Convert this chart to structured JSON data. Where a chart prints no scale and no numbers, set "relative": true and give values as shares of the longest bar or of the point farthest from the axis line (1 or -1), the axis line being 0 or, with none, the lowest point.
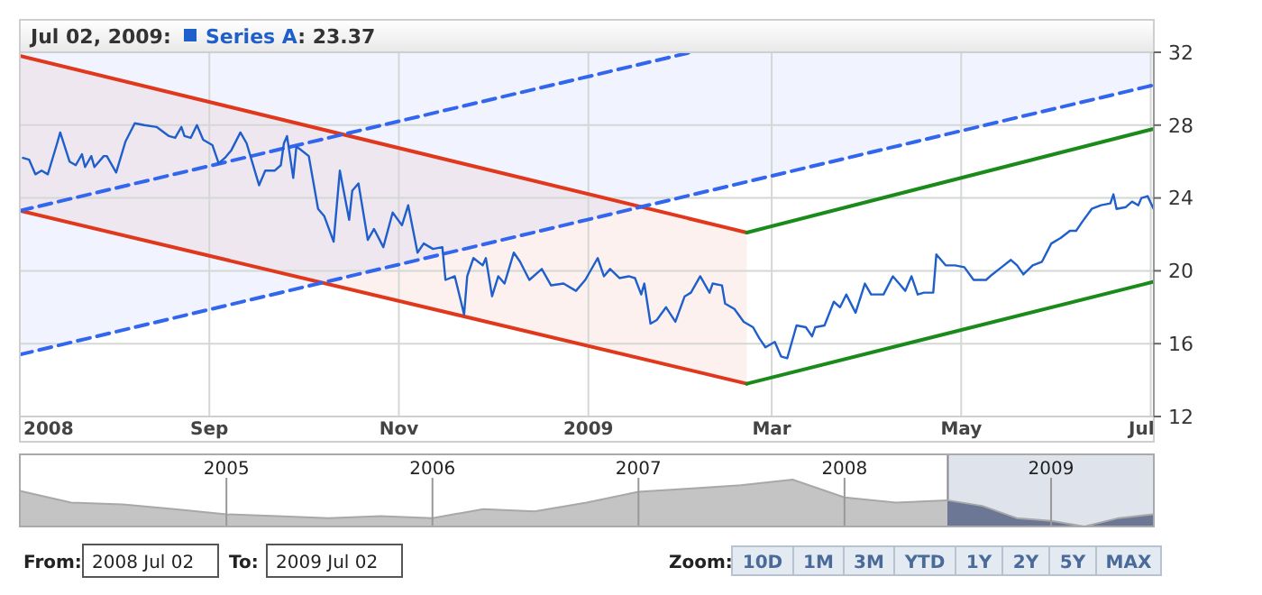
{
  "chart_data": [
    {
      "type": "line",
      "legend_title": "Jul 02, 2009:",
      "legend": "top left",
      "grid": true,
      "annotations": [
        ": 23.37"
      ],
      "xlim": [
        "2008-07-02",
        "2009-07-02"
      ],
      "ylim": [
        12,
        32
      ],
      "yticks": [
        12,
        16,
        20,
        24,
        28,
        32
      ],
      "xticks": [
        {
          "value": "2008-07-02",
          "label": "2008"
        },
        {
          "value": "2008-09-01",
          "label": "Sep"
        },
        {
          "value": "2008-11-01",
          "label": "Nov"
        },
        {
          "value": "2009-01-01",
          "label": "2009"
        },
        {
          "value": "2009-03-01",
          "label": "Mar"
        },
        {
          "value": "2009-05-01",
          "label": "May"
        },
        {
          "value": "2009-07-01",
          "label": "Jul"
        }
      ],
      "series": [
        {
          "type": "line",
          "name": "Series A",
          "color": "#1f5fcc",
          "x": [
            "2008-07-03",
            "2008-07-05",
            "2008-07-07",
            "2008-07-09",
            "2008-07-11",
            "2008-07-14",
            "2008-07-15",
            "2008-07-18",
            "2008-07-20",
            "2008-07-22",
            "2008-07-23",
            "2008-07-25",
            "2008-07-26",
            "2008-07-29",
            "2008-07-30",
            "2008-08-02",
            "2008-08-05",
            "2008-08-08",
            "2008-08-11",
            "2008-08-15",
            "2008-08-19",
            "2008-08-21",
            "2008-08-23",
            "2008-08-24",
            "2008-08-26",
            "2008-08-28",
            "2008-08-30",
            "2008-09-02",
            "2008-09-04",
            "2008-09-06",
            "2008-09-08",
            "2008-09-11",
            "2008-09-13",
            "2008-09-17",
            "2008-09-19",
            "2008-09-22",
            "2008-09-24",
            "2008-09-25",
            "2008-09-26",
            "2008-09-28",
            "2008-09-29",
            "2008-09-30",
            "2008-10-03",
            "2008-10-06",
            "2008-10-08",
            "2008-10-11",
            "2008-10-13",
            "2008-10-16",
            "2008-10-17",
            "2008-10-19",
            "2008-10-22",
            "2008-10-24",
            "2008-10-27",
            "2008-10-30",
            "2008-11-02",
            "2008-11-04",
            "2008-11-07",
            "2008-11-09",
            "2008-11-12",
            "2008-11-15",
            "2008-11-16",
            "2008-11-19",
            "2008-11-22",
            "2008-11-23",
            "2008-11-25",
            "2008-11-28",
            "2008-11-29",
            "2008-12-01",
            "2008-12-03",
            "2008-12-05",
            "2008-12-08",
            "2008-12-10",
            "2008-12-13",
            "2008-12-17",
            "2008-12-20",
            "2008-12-24",
            "2008-12-28",
            "2008-12-31",
            "2009-01-04",
            "2009-01-06",
            "2009-01-08",
            "2009-01-11",
            "2009-01-14",
            "2009-01-16",
            "2009-01-18",
            "2009-01-19",
            "2009-01-21",
            "2009-01-23",
            "2009-01-26",
            "2009-01-29",
            "2009-02-01",
            "2009-02-03",
            "2009-02-06",
            "2009-02-09",
            "2009-02-10",
            "2009-02-13",
            "2009-02-14",
            "2009-02-17",
            "2009-02-20",
            "2009-02-23",
            "2009-02-25",
            "2009-02-27",
            "2009-03-02",
            "2009-03-04",
            "2009-03-06",
            "2009-03-09",
            "2009-03-12",
            "2009-03-14",
            "2009-03-15",
            "2009-03-18",
            "2009-03-21",
            "2009-03-23",
            "2009-03-25",
            "2009-03-28",
            "2009-03-31",
            "2009-04-02",
            "2009-04-06",
            "2009-04-09",
            "2009-04-11",
            "2009-04-13",
            "2009-04-15",
            "2009-04-17",
            "2009-04-19",
            "2009-04-22",
            "2009-04-23",
            "2009-04-26",
            "2009-04-29",
            "2009-05-02",
            "2009-05-05",
            "2009-05-09",
            "2009-05-11",
            "2009-05-14",
            "2009-05-17",
            "2009-05-19",
            "2009-05-21",
            "2009-05-24",
            "2009-05-27",
            "2009-05-30",
            "2009-06-02",
            "2009-06-05",
            "2009-06-07",
            "2009-06-09",
            "2009-06-12",
            "2009-06-15",
            "2009-06-18",
            "2009-06-19",
            "2009-06-20",
            "2009-06-23",
            "2009-06-25",
            "2009-06-27",
            "2009-06-28",
            "2009-06-30",
            "2009-07-02"
          ],
          "values": [
            26.2,
            26.1,
            25.3,
            25.5,
            25.3,
            27.0,
            27.6,
            26.0,
            25.8,
            26.4,
            25.7,
            26.3,
            25.7,
            26.3,
            26.3,
            25.4,
            27.1,
            28.1,
            28.0,
            27.9,
            27.4,
            27.3,
            27.9,
            27.4,
            27.3,
            28.0,
            27.2,
            26.9,
            25.9,
            26.2,
            26.6,
            27.6,
            27.0,
            24.7,
            25.5,
            25.5,
            25.8,
            27.0,
            27.4,
            25.1,
            26.8,
            26.7,
            26.3,
            23.4,
            23.0,
            21.6,
            25.5,
            22.8,
            24.4,
            24.8,
            21.7,
            22.3,
            21.3,
            23.2,
            22.5,
            23.6,
            21.0,
            21.5,
            21.2,
            21.3,
            19.5,
            19.7,
            17.6,
            19.7,
            20.7,
            20.3,
            20.7,
            18.6,
            19.7,
            19.3,
            21.0,
            20.5,
            19.5,
            20.1,
            19.2,
            19.3,
            18.9,
            19.5,
            20.7,
            19.7,
            20.1,
            19.6,
            19.7,
            19.6,
            18.7,
            19.3,
            17.1,
            17.3,
            18.0,
            17.2,
            18.6,
            18.8,
            19.7,
            18.8,
            19.3,
            19.2,
            18.2,
            17.9,
            17.2,
            16.9,
            16.3,
            15.8,
            16.1,
            15.3,
            15.2,
            17.0,
            16.9,
            16.4,
            16.9,
            17.0,
            18.3,
            18.0,
            18.7,
            17.7,
            19.3,
            18.7,
            18.7,
            19.7,
            19.3,
            18.9,
            19.7,
            18.7,
            18.8,
            18.8,
            20.9,
            20.3,
            20.3,
            20.2,
            19.5,
            19.5,
            19.8,
            20.2,
            20.6,
            20.3,
            19.8,
            20.3,
            20.5,
            21.5,
            21.8,
            22.2,
            22.2,
            22.7,
            23.4,
            23.6,
            23.7,
            24.2,
            23.4,
            23.5,
            23.8,
            23.6,
            24.0,
            24.1,
            23.37
          ]
        },
        {
          "type": "line",
          "color": "#e0381c",
          "x": [
            "2008-07-02",
            "2009-02-21"
          ],
          "values": [
            31.8,
            22.1
          ],
          "lower": [
            23.3,
            13.8
          ],
          "upper": [
            31.8,
            22.1
          ]
        },
        {
          "type": "line",
          "color": "#e0381c",
          "x": [
            "2008-07-02",
            "2009-02-21"
          ],
          "values": [
            23.3,
            13.8
          ]
        },
        {
          "type": "line",
          "color": "#1a8a1a",
          "x": [
            "2009-02-21",
            "2009-07-02"
          ],
          "values": [
            22.1,
            27.8
          ]
        },
        {
          "type": "line",
          "color": "#1a8a1a",
          "x": [
            "2009-02-21",
            "2009-07-02"
          ],
          "values": [
            13.8,
            19.4
          ]
        },
        {
          "type": "line",
          "color": "#3366ee",
          "line_style": "dashed",
          "x": [
            "2008-07-02",
            "2009-02-03"
          ],
          "values": [
            23.3,
            32
          ]
        },
        {
          "type": "line",
          "color": "#3366ee",
          "line_style": "dashed",
          "x": [
            "2008-07-02",
            "2009-07-02"
          ],
          "values": [
            15.4,
            30.2
          ],
          "lower": [
            15.4,
            30.2
          ],
          "upper": [
            32,
            32
          ]
        }
      ]
    },
    {
      "type": "area",
      "relative": true,
      "grid": "x",
      "color": "#c4c4c4",
      "xlim": [
        "2004-01-01",
        "2009-07-02"
      ],
      "xticks": [
        {
          "value": "2005-01-01",
          "label": "2005"
        },
        {
          "value": "2006-01-01",
          "label": "2006"
        },
        {
          "value": "2007-01-01",
          "label": "2007"
        },
        {
          "value": "2008-01-01",
          "label": "2008"
        },
        {
          "value": "2009-01-01",
          "label": "2009"
        }
      ],
      "bands": [
        {
          "axis": "x",
          "from": "2008-07-02",
          "to": "2009-07-02",
          "color": "#dfe3ec"
        }
      ],
      "x": [
        "2004-01-01",
        "2004-04-01",
        "2004-07-01",
        "2004-10-01",
        "2005-01-01",
        "2005-04-01",
        "2005-07-01",
        "2005-10-01",
        "2006-01-01",
        "2006-04-01",
        "2006-07-01",
        "2006-10-01",
        "2007-01-01",
        "2007-04-01",
        "2007-07-01",
        "2007-10-01",
        "2008-01-01",
        "2008-04-01",
        "2008-07-01",
        "2008-09-01",
        "2008-11-01",
        "2009-01-01",
        "2009-03-01",
        "2009-05-01",
        "2009-07-02"
      ],
      "values": [
        0.76,
        0.51,
        0.47,
        0.37,
        0.26,
        0.22,
        0.18,
        0.22,
        0.18,
        0.37,
        0.32,
        0.51,
        0.74,
        0.81,
        0.88,
        1,
        0.62,
        0.51,
        0.56,
        0.44,
        0.18,
        0.12,
        0,
        0.18,
        0.26
      ]
    },
    {
      "type": "other",
      "annotations": [
        "From:",
        "2008 Jul 02",
        "To:",
        "2009 Jul 02",
        "Zoom:",
        "10D",
        "1M",
        "3M",
        "YTD",
        "1Y",
        "2Y",
        "5Y",
        "MAX"
      ]
    }
  ]
}
